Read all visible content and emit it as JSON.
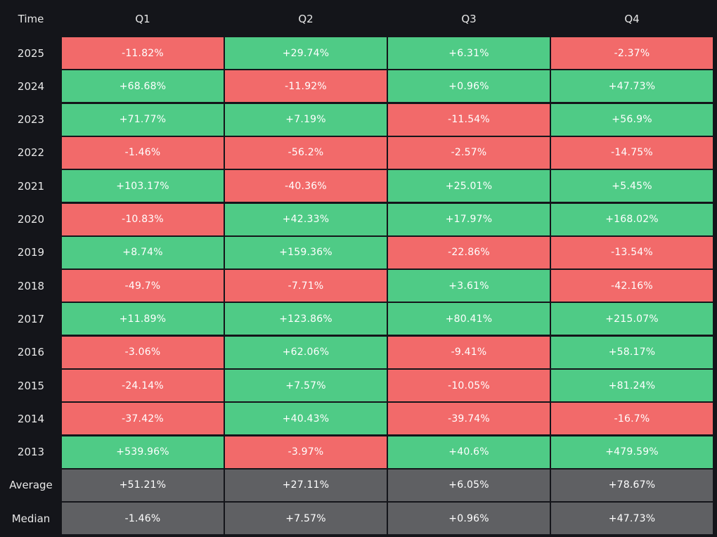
{
  "colors": {
    "background": "#14151a",
    "positive": "#4fcb86",
    "negative": "#f26a6a",
    "summary": "#5f6063"
  },
  "chart_data": {
    "type": "heatmap",
    "corner_label": "Time",
    "columns": [
      "Q1",
      "Q2",
      "Q3",
      "Q4"
    ],
    "rows": [
      {
        "label": "2025",
        "values": [
          "-11.82%",
          "+29.74%",
          "+6.31%",
          "-2.37%"
        ]
      },
      {
        "label": "2024",
        "values": [
          "+68.68%",
          "-11.92%",
          "+0.96%",
          "+47.73%"
        ]
      },
      {
        "label": "2023",
        "values": [
          "+71.77%",
          "+7.19%",
          "-11.54%",
          "+56.9%"
        ]
      },
      {
        "label": "2022",
        "values": [
          "-1.46%",
          "-56.2%",
          "-2.57%",
          "-14.75%"
        ]
      },
      {
        "label": "2021",
        "values": [
          "+103.17%",
          "-40.36%",
          "+25.01%",
          "+5.45%"
        ]
      },
      {
        "label": "2020",
        "values": [
          "-10.83%",
          "+42.33%",
          "+17.97%",
          "+168.02%"
        ]
      },
      {
        "label": "2019",
        "values": [
          "+8.74%",
          "+159.36%",
          "-22.86%",
          "-13.54%"
        ]
      },
      {
        "label": "2018",
        "values": [
          "-49.7%",
          "-7.71%",
          "+3.61%",
          "-42.16%"
        ]
      },
      {
        "label": "2017",
        "values": [
          "+11.89%",
          "+123.86%",
          "+80.41%",
          "+215.07%"
        ]
      },
      {
        "label": "2016",
        "values": [
          "-3.06%",
          "+62.06%",
          "-9.41%",
          "+58.17%"
        ]
      },
      {
        "label": "2015",
        "values": [
          "-24.14%",
          "+7.57%",
          "-10.05%",
          "+81.24%"
        ]
      },
      {
        "label": "2014",
        "values": [
          "-37.42%",
          "+40.43%",
          "-39.74%",
          "-16.7%"
        ]
      },
      {
        "label": "2013",
        "values": [
          "+539.96%",
          "-3.97%",
          "+40.6%",
          "+479.59%"
        ]
      }
    ],
    "summary_rows": [
      {
        "label": "Average",
        "values": [
          "+51.21%",
          "+27.11%",
          "+6.05%",
          "+78.67%"
        ]
      },
      {
        "label": "Median",
        "values": [
          "-1.46%",
          "+7.57%",
          "+0.96%",
          "+47.73%"
        ]
      }
    ]
  }
}
